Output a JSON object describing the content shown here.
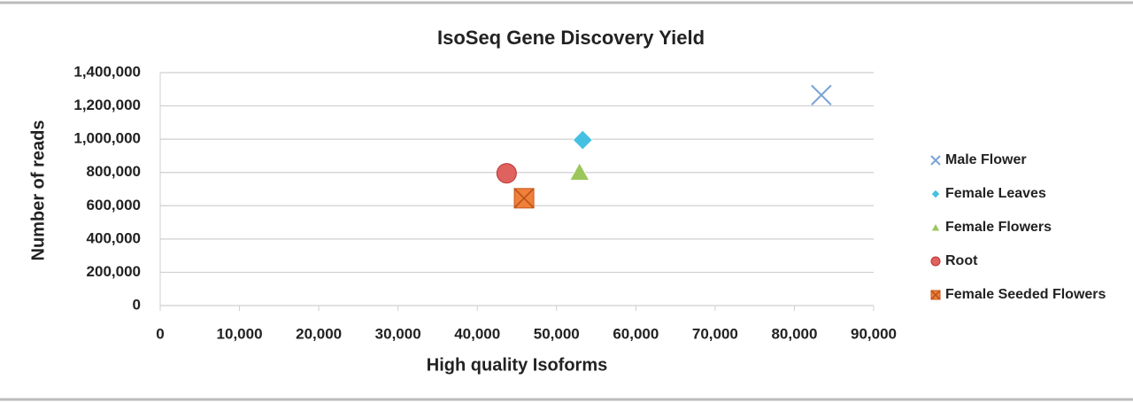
{
  "chart_data": {
    "type": "scatter",
    "title": "IsoSeq Gene Discovery Yield",
    "x_label": "High quality Isoforms",
    "y_label": "Number of reads",
    "xlim": [
      0,
      90000
    ],
    "xticks": [
      0,
      {
        "value": 10000,
        "label": "10,000"
      },
      {
        "value": 20000,
        "label": "20,000"
      },
      {
        "value": 30000,
        "label": "30,000"
      },
      {
        "value": 40000,
        "label": "40,000"
      },
      {
        "value": 50000,
        "label": "50,000"
      },
      {
        "value": 60000,
        "label": "60,000"
      },
      {
        "value": 70000,
        "label": "70,000"
      },
      {
        "value": 80000,
        "label": "80,000"
      },
      {
        "value": 90000,
        "label": "90,000"
      }
    ],
    "ylim": [
      0,
      1400000
    ],
    "yticks": [
      0,
      {
        "value": 200000,
        "label": "200,000"
      },
      {
        "value": 400000,
        "label": "400,000"
      },
      {
        "value": 600000,
        "label": "600,000"
      },
      {
        "value": 800000,
        "label": "800,000"
      },
      {
        "value": 1000000,
        "label": "1,000,000"
      },
      {
        "value": 1200000,
        "label": "1,200,000"
      },
      {
        "value": 1400000,
        "label": "1,400,000"
      }
    ],
    "grid": true,
    "legend": "right",
    "series": [
      {
        "name": "Male Flower",
        "color": "#7ba3d6",
        "marker": "x",
        "x": [
          83400
        ],
        "values": [
          1265000
        ]
      },
      {
        "name": "Female Leaves",
        "color": "#45c0e0",
        "marker": "diamond",
        "x": [
          53300
        ],
        "values": [
          995000
        ]
      },
      {
        "name": "Female Flowers",
        "color": "#9bc75a",
        "marker": "triangle",
        "x": [
          52900
        ],
        "values": [
          800000
        ]
      },
      {
        "name": "Root",
        "color": "#e0625e",
        "marker": "circle",
        "x": [
          43700
        ],
        "values": [
          795000
        ]
      },
      {
        "name": "Female Seeded Flowers",
        "color": "#f07f38",
        "marker": "square-x",
        "x": [
          45900
        ],
        "values": [
          645000
        ]
      }
    ]
  }
}
